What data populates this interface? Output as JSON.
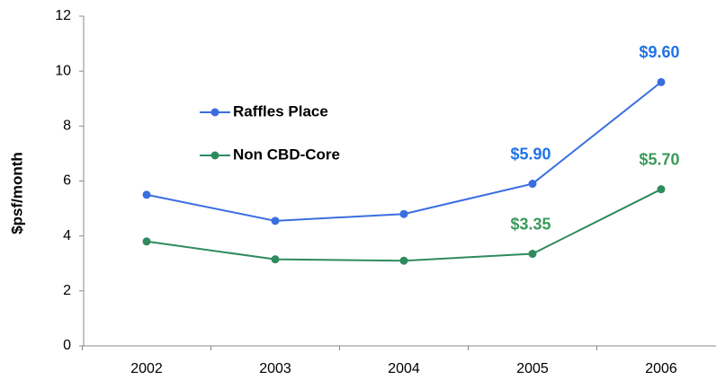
{
  "chart_data": {
    "type": "line",
    "y_label": "$psf/month",
    "categories": [
      "2002",
      "2003",
      "2004",
      "2005",
      "2006"
    ],
    "series": [
      {
        "name": "Raffles Place",
        "color": "#3a6ee0",
        "label_color": "#1f72e6",
        "values": [
          5.5,
          4.55,
          4.8,
          5.9,
          9.6
        ],
        "value_labels": [
          null,
          null,
          null,
          "$5.90",
          "$9.60"
        ]
      },
      {
        "name": "Non CBD-Core",
        "color": "#2e8b5e",
        "label_color": "#3a9a5a",
        "values": [
          3.8,
          3.15,
          3.1,
          3.35,
          5.7
        ],
        "value_labels": [
          null,
          null,
          null,
          "$3.35",
          "$5.70"
        ]
      }
    ],
    "ylim": [
      0,
      12
    ],
    "yticks": [
      0,
      2,
      4,
      6,
      8,
      10,
      12
    ]
  }
}
